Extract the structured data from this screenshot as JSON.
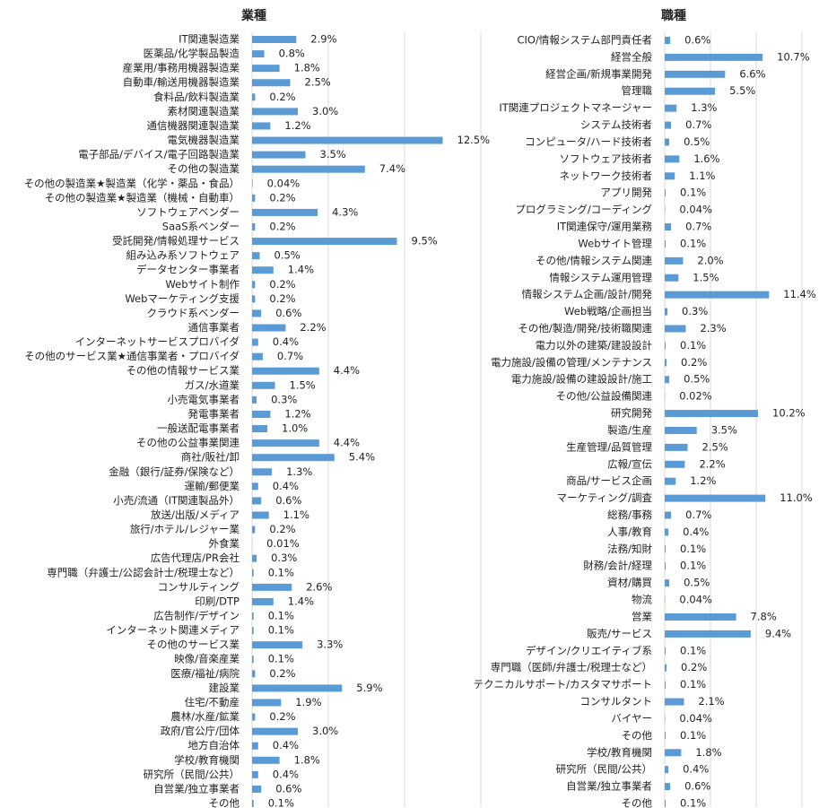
{
  "chart_data": [
    {
      "type": "bar",
      "orientation": "horizontal",
      "title": "業種",
      "color": "#5b9bd5",
      "grid": true,
      "xlim": [
        0,
        15
      ],
      "xticks": [
        0,
        5,
        10,
        15
      ],
      "categories": [
        "IT関連製造業",
        "医薬品/化学製品製造",
        "産業用/事務用機器製造業",
        "自動車/輸送用機器製造業",
        "食料品/飲料製造業",
        "素材関連製造業",
        "通信機器関連製造業",
        "電気機器製造業",
        "電子部品/デバイス/電子回路製造業",
        "その他の製造業",
        "その他の製造業★製造業（化学・薬品・食品）",
        "その他の製造業★製造業（機械・自動車）",
        "ソフトウェアベンダー",
        "SaaS系ベンダー",
        "受託開発/情報処理サービス",
        "組み込み系ソフトウェア",
        "データセンター事業者",
        "Webサイト制作",
        "Webマーケティング支援",
        "クラウド系ベンダー",
        "通信事業者",
        "インターネットサービスプロバイダ",
        "その他のサービス業★通信事業者・プロバイダ",
        "その他の情報サービス業",
        "ガス/水道業",
        "小売電気事業者",
        "発電事業者",
        "一般送配電事業者",
        "その他の公益事業関連",
        "商社/販社/卸",
        "金融（銀行/証券/保険など）",
        "運輸/郵便業",
        "小売/流通（IT関連製品外）",
        "放送/出版/メディア",
        "旅行/ホテル/レジャー業",
        "外食業",
        "広告代理店/PR会社",
        "専門職（弁護士/公認会計士/税理士など）",
        "コンサルティング",
        "印刷/DTP",
        "広告制作/デザイン",
        "インターネット関連メディア",
        "その他のサービス業",
        "映像/音楽産業",
        "医療/福祉/病院",
        "建設業",
        "住宅/不動産",
        "農林/水産/鉱業",
        "政府/官公庁/団体",
        "地方自治体",
        "学校/教育機関",
        "研究所（民間/公共）",
        "自営業/独立事業者",
        "その他"
      ],
      "values": [
        2.9,
        0.8,
        1.8,
        2.5,
        0.2,
        3.0,
        1.2,
        12.5,
        3.5,
        7.4,
        0.04,
        0.2,
        4.3,
        0.2,
        9.5,
        0.5,
        1.4,
        0.2,
        0.2,
        0.6,
        2.2,
        0.4,
        0.7,
        4.4,
        1.5,
        0.3,
        1.2,
        1.0,
        4.4,
        5.4,
        1.3,
        0.4,
        0.6,
        1.1,
        0.2,
        0.01,
        0.3,
        0.1,
        2.6,
        1.4,
        0.1,
        0.1,
        3.3,
        0.1,
        0.2,
        5.9,
        1.9,
        0.2,
        3.0,
        0.4,
        1.8,
        0.4,
        0.6,
        0.1
      ],
      "value_labels": [
        "2.9%",
        "0.8%",
        "1.8%",
        "2.5%",
        "0.2%",
        "3.0%",
        "1.2%",
        "12.5%",
        "3.5%",
        "7.4%",
        "0.04%",
        "0.2%",
        "4.3%",
        "0.2%",
        "9.5%",
        "0.5%",
        "1.4%",
        "0.2%",
        "0.2%",
        "0.6%",
        "2.2%",
        "0.4%",
        "0.7%",
        "4.4%",
        "1.5%",
        "0.3%",
        "1.2%",
        "1.0%",
        "4.4%",
        "5.4%",
        "1.3%",
        "0.4%",
        "0.6%",
        "1.1%",
        "0.2%",
        "0.01%",
        "0.3%",
        "0.1%",
        "2.6%",
        "1.4%",
        "0.1%",
        "0.1%",
        "3.3%",
        "0.1%",
        "0.2%",
        "5.9%",
        "1.9%",
        "0.2%",
        "3.0%",
        "0.4%",
        "1.8%",
        "0.4%",
        "0.6%",
        "0.1%"
      ]
    },
    {
      "type": "bar",
      "orientation": "horizontal",
      "title": "職種",
      "color": "#5b9bd5",
      "grid": true,
      "xlim": [
        0,
        15
      ],
      "xticks": [
        0,
        5,
        10,
        15
      ],
      "categories": [
        "CIO/情報システム部門責任者",
        "経営全般",
        "経営企画/新規事業開発",
        "管理職",
        "IT関連プロジェクトマネージャー",
        "システム技術者",
        "コンピュータ/ハード技術者",
        "ソフトウェア技術者",
        "ネットワーク技術者",
        "アプリ開発",
        "プログラミング/コーディング",
        "IT関連保守/運用業務",
        "Webサイト管理",
        "その他/情報システム関連",
        "情報システム運用管理",
        "情報システム企画/設計/開発",
        "Web戦略/企画担当",
        "その他/製造/開発/技術職関連",
        "電力以外の建築/建設設計",
        "電力施設/設備の管理/メンテナンス",
        "電力施設/設備の建設設計/施工",
        "その他/公益設備関連",
        "研究開発",
        "製造/生産",
        "生産管理/品質管理",
        "広報/宣伝",
        "商品/サービス企画",
        "マーケティング/調査",
        "総務/事務",
        "人事/教育",
        "法務/知財",
        "財務/会計/経理",
        "資材/購買",
        "物流",
        "営業",
        "販売/サービス",
        "デザイン/クリエイティブ系",
        "専門職（医師/弁護士/税理士など）",
        "テクニカルサポート/カスタマサポート",
        "コンサルタント",
        "バイヤー",
        "その他",
        "学校/教育機関",
        "研究所（民間/公共）",
        "自営業/独立事業者",
        "その他"
      ],
      "values": [
        0.6,
        10.7,
        6.6,
        5.5,
        1.3,
        0.7,
        0.5,
        1.6,
        1.1,
        0.1,
        0.04,
        0.7,
        0.1,
        2.0,
        1.5,
        11.4,
        0.3,
        2.3,
        0.1,
        0.2,
        0.5,
        0.02,
        10.2,
        3.5,
        2.5,
        2.2,
        1.2,
        11.0,
        0.7,
        0.4,
        0.1,
        0.1,
        0.5,
        0.04,
        7.8,
        9.4,
        0.1,
        0.2,
        0.1,
        2.1,
        0.04,
        0.1,
        1.8,
        0.4,
        0.6,
        0.1
      ],
      "value_labels": [
        "0.6%",
        "10.7%",
        "6.6%",
        "5.5%",
        "1.3%",
        "0.7%",
        "0.5%",
        "1.6%",
        "1.1%",
        "0.1%",
        "0.04%",
        "0.7%",
        "0.1%",
        "2.0%",
        "1.5%",
        "11.4%",
        "0.3%",
        "2.3%",
        "0.1%",
        "0.2%",
        "0.5%",
        "0.02%",
        "10.2%",
        "3.5%",
        "2.5%",
        "2.2%",
        "1.2%",
        "11.0%",
        "0.7%",
        "0.4%",
        "0.1%",
        "0.1%",
        "0.5%",
        "0.04%",
        "7.8%",
        "9.4%",
        "0.1%",
        "0.2%",
        "0.1%",
        "2.1%",
        "0.04%",
        "0.1%",
        "1.8%",
        "0.4%",
        "0.6%",
        "0.1%"
      ]
    }
  ]
}
